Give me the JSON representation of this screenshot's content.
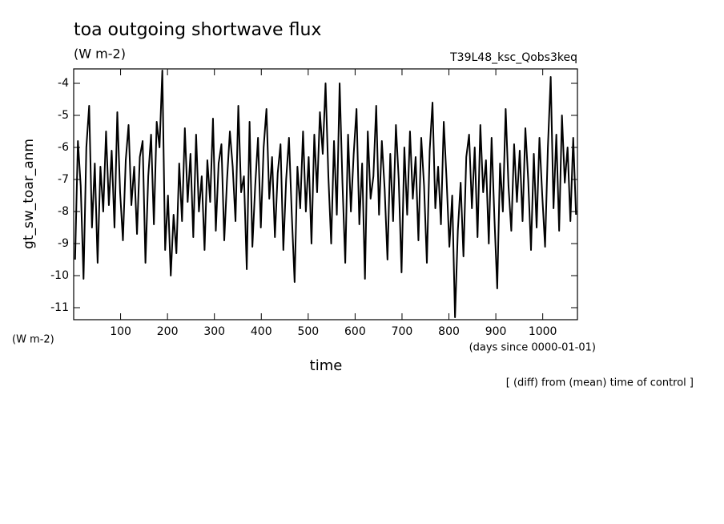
{
  "chart_data": {
    "type": "line",
    "title": "toa outgoing shortwave flux",
    "subtitle": "(W m-2)",
    "experiment": "T39L48_ksc_Qobs3keq",
    "ylabel": "gt_sw_toar_anm",
    "yunit": "(W m-2)",
    "xlabel": "time",
    "xunit": "(days since 0000-01-01)",
    "note": "[ (diff) from (mean) time of control ]",
    "xlim": [
      0,
      1074
    ],
    "ylim": [
      -11.375,
      -3.55
    ],
    "xticks": [
      100,
      200,
      300,
      400,
      500,
      600,
      700,
      800,
      900,
      1000
    ],
    "yticks": [
      -11,
      -10,
      -9,
      -8,
      -7,
      -6,
      -5,
      -4
    ],
    "color": "#000000",
    "x": [
      3,
      9,
      15,
      21,
      27,
      33,
      39,
      45,
      51,
      57,
      63,
      69,
      75,
      81,
      87,
      93,
      99,
      105,
      111,
      117,
      123,
      129,
      135,
      141,
      147,
      153,
      159,
      165,
      171,
      177,
      183,
      189,
      195,
      201,
      207,
      213,
      219,
      225,
      231,
      237,
      243,
      249,
      255,
      261,
      267,
      273,
      279,
      285,
      291,
      297,
      303,
      309,
      315,
      321,
      327,
      333,
      339,
      345,
      351,
      357,
      363,
      369,
      375,
      381,
      387,
      393,
      399,
      405,
      411,
      417,
      423,
      429,
      435,
      441,
      447,
      453,
      459,
      465,
      471,
      477,
      483,
      489,
      495,
      501,
      507,
      513,
      519,
      525,
      531,
      537,
      543,
      549,
      555,
      561,
      567,
      573,
      579,
      585,
      591,
      597,
      603,
      609,
      615,
      621,
      627,
      633,
      639,
      645,
      651,
      657,
      663,
      669,
      675,
      681,
      687,
      693,
      699,
      705,
      711,
      717,
      723,
      729,
      735,
      741,
      747,
      753,
      759,
      765,
      771,
      777,
      783,
      789,
      795,
      801,
      807,
      813,
      819,
      825,
      831,
      837,
      843,
      849,
      855,
      861,
      867,
      873,
      879,
      885,
      891,
      897,
      903,
      909,
      915,
      921,
      927,
      933,
      939,
      945,
      951,
      957,
      963,
      969,
      975,
      981,
      987,
      993,
      999,
      1005,
      1011,
      1017,
      1023,
      1029,
      1035,
      1041,
      1047,
      1053,
      1059,
      1065,
      1071
    ],
    "values": [
      -9.5,
      -5.8,
      -7.2,
      -10.1,
      -6.0,
      -4.7,
      -8.5,
      -6.5,
      -9.6,
      -6.6,
      -8.0,
      -5.5,
      -7.8,
      -6.1,
      -8.5,
      -4.9,
      -7.4,
      -8.9,
      -6.4,
      -5.3,
      -7.8,
      -6.6,
      -8.7,
      -6.3,
      -5.8,
      -9.6,
      -6.9,
      -5.6,
      -8.4,
      -5.2,
      -6.0,
      -3.6,
      -9.2,
      -7.5,
      -10.0,
      -8.1,
      -9.3,
      -6.5,
      -8.3,
      -5.4,
      -7.7,
      -6.2,
      -8.8,
      -5.6,
      -8.0,
      -6.9,
      -9.2,
      -6.4,
      -7.7,
      -5.1,
      -8.6,
      -6.5,
      -5.9,
      -8.9,
      -7.0,
      -5.5,
      -6.6,
      -8.3,
      -4.7,
      -7.4,
      -6.9,
      -9.8,
      -5.2,
      -9.1,
      -7.2,
      -5.7,
      -8.5,
      -6.0,
      -4.8,
      -7.6,
      -6.3,
      -8.8,
      -6.8,
      -5.9,
      -9.2,
      -7.0,
      -5.7,
      -8.1,
      -10.2,
      -6.6,
      -7.9,
      -5.5,
      -8.0,
      -6.3,
      -9.0,
      -5.6,
      -7.4,
      -4.9,
      -6.2,
      -4.0,
      -6.9,
      -9.0,
      -5.8,
      -8.1,
      -4.0,
      -7.1,
      -9.6,
      -5.6,
      -8.0,
      -6.2,
      -4.8,
      -8.4,
      -6.5,
      -10.1,
      -5.5,
      -7.6,
      -6.9,
      -4.7,
      -8.1,
      -5.8,
      -7.3,
      -9.5,
      -6.2,
      -8.3,
      -5.3,
      -7.0,
      -9.9,
      -6.0,
      -8.1,
      -5.5,
      -7.6,
      -6.3,
      -8.9,
      -5.7,
      -7.2,
      -9.6,
      -6.1,
      -4.6,
      -7.9,
      -6.6,
      -8.4,
      -5.2,
      -7.0,
      -9.1,
      -7.5,
      -11.3,
      -8.6,
      -7.1,
      -9.4,
      -6.3,
      -5.6,
      -7.9,
      -6.0,
      -8.8,
      -5.3,
      -7.4,
      -6.4,
      -9.0,
      -5.7,
      -8.2,
      -10.4,
      -6.5,
      -8.0,
      -4.8,
      -7.2,
      -8.6,
      -5.9,
      -7.7,
      -6.1,
      -8.3,
      -5.4,
      -7.0,
      -9.2,
      -6.2,
      -8.5,
      -5.7,
      -7.5,
      -9.1,
      -6.0,
      -3.8,
      -7.9,
      -5.6,
      -8.6,
      -5.0,
      -7.1,
      -6.0,
      -8.3,
      -5.7,
      -8.1
    ]
  }
}
